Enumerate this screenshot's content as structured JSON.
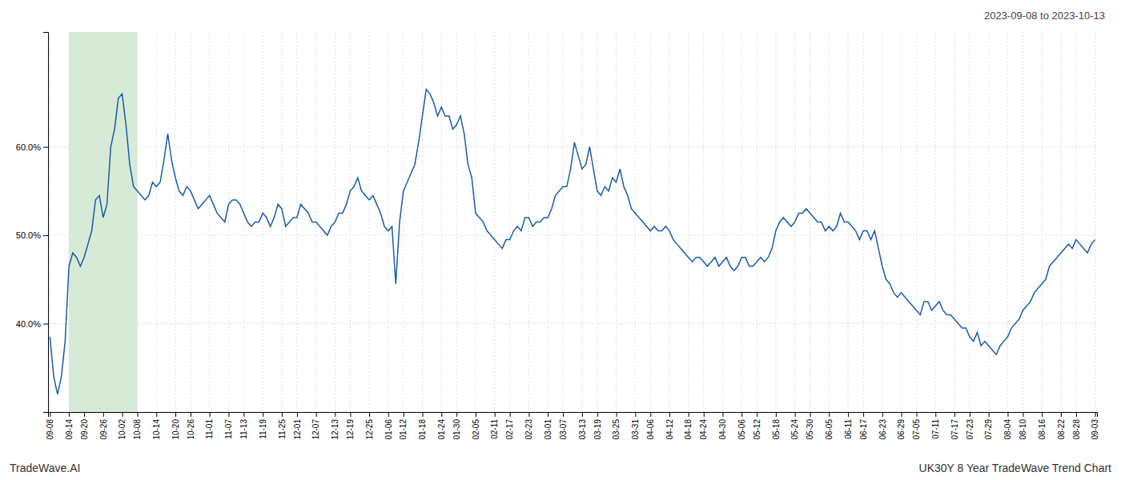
{
  "chart_data": {
    "type": "line",
    "title": "2023-09-08 to 2023-10-13",
    "annotations": [
      "TradeWave.AI",
      "UK30Y 8 Year TradeWave Trend Chart"
    ],
    "color": "#1a5ca8",
    "grid": true,
    "ylim": [
      30.0,
      73.0
    ],
    "yticks": [
      {
        "value": 40.0,
        "label": "40.0%"
      },
      {
        "value": 50.0,
        "label": "50.0%"
      },
      {
        "value": 60.0,
        "label": "60.0%"
      }
    ],
    "shade": {
      "start": "09-14",
      "end": "10-08",
      "color": "#d6ead6"
    },
    "categories": [
      "09-08",
      null,
      null,
      null,
      null,
      "09-14",
      null,
      null,
      null,
      "09-20",
      null,
      null,
      null,
      null,
      "09-26",
      null,
      null,
      null,
      null,
      "10-02",
      null,
      null,
      null,
      "10-08",
      null,
      null,
      null,
      null,
      "10-14",
      null,
      null,
      null,
      null,
      "10-20",
      null,
      null,
      null,
      "10-26",
      null,
      null,
      null,
      null,
      "11-01",
      null,
      null,
      null,
      null,
      "11-07",
      null,
      null,
      null,
      "11-13",
      null,
      null,
      null,
      null,
      "11-19",
      null,
      null,
      null,
      null,
      "11-25",
      null,
      null,
      null,
      "12-01",
      null,
      null,
      null,
      null,
      "12-07",
      null,
      null,
      null,
      null,
      "12-13",
      null,
      null,
      null,
      "12-19",
      null,
      null,
      null,
      null,
      "12-25",
      null,
      null,
      null,
      null,
      "01-06",
      null,
      null,
      null,
      "01-12",
      null,
      null,
      null,
      null,
      "01-18",
      null,
      null,
      null,
      null,
      "01-24",
      null,
      null,
      null,
      "01-30",
      null,
      null,
      null,
      null,
      "02-05",
      null,
      null,
      null,
      null,
      "02-11",
      null,
      null,
      null,
      "02-17",
      null,
      null,
      null,
      null,
      "02-23",
      null,
      null,
      null,
      null,
      "03-01",
      null,
      null,
      null,
      "03-07",
      null,
      null,
      null,
      null,
      "03-13",
      null,
      null,
      null,
      "03-19",
      null,
      null,
      null,
      null,
      "03-25",
      null,
      null,
      null,
      null,
      "03-31",
      null,
      null,
      null,
      "04-06",
      null,
      null,
      null,
      null,
      "04-12",
      null,
      null,
      null,
      null,
      "04-18",
      null,
      null,
      null,
      "04-24",
      null,
      null,
      null,
      null,
      "04-30",
      null,
      null,
      null,
      null,
      "05-06",
      null,
      null,
      null,
      "05-12",
      null,
      null,
      null,
      null,
      "05-18",
      null,
      null,
      null,
      null,
      "05-24",
      null,
      null,
      null,
      "05-30",
      null,
      null,
      null,
      null,
      "06-05",
      null,
      null,
      null,
      null,
      "06-11",
      null,
      null,
      null,
      "06-17",
      null,
      null,
      null,
      null,
      "06-23",
      null,
      null,
      null,
      null,
      "06-29",
      null,
      null,
      null,
      "07-05",
      null,
      null,
      null,
      null,
      "07-11",
      null,
      null,
      null,
      null,
      "07-17",
      null,
      null,
      null,
      "07-23",
      null,
      null,
      null,
      null,
      "07-29",
      null,
      null,
      null,
      null,
      "08-04",
      null,
      null,
      null,
      "08-10",
      null,
      null,
      null,
      null,
      "08-16",
      null,
      null,
      null,
      null,
      "08-22",
      null,
      null,
      null,
      "08-28",
      null,
      null,
      null,
      null,
      "09-03"
    ],
    "values": [
      38.5,
      34.0,
      32.0,
      34.0,
      38.0,
      46.5,
      48.0,
      47.5,
      46.5,
      47.5,
      49.0,
      50.5,
      54.0,
      54.5,
      52.0,
      53.5,
      60.0,
      62.0,
      65.5,
      66.0,
      62.5,
      58.0,
      55.5,
      55.0,
      54.5,
      54.0,
      54.5,
      56.0,
      55.5,
      56.0,
      58.5,
      61.5,
      58.5,
      56.5,
      55.0,
      54.5,
      55.5,
      55.0,
      54.0,
      53.0,
      53.5,
      54.0,
      54.5,
      53.5,
      52.5,
      52.0,
      51.5,
      53.5,
      54.0,
      54.0,
      53.5,
      52.5,
      51.5,
      51.0,
      51.5,
      51.5,
      52.5,
      52.0,
      51.0,
      52.0,
      53.5,
      53.0,
      51.0,
      51.5,
      52.0,
      52.0,
      53.5,
      53.0,
      52.5,
      51.5,
      51.5,
      51.0,
      50.5,
      50.0,
      51.0,
      51.5,
      52.5,
      52.5,
      53.5,
      55.0,
      55.5,
      56.5,
      55.0,
      54.5,
      54.0,
      54.5,
      53.5,
      52.5,
      51.0,
      50.5,
      51.0,
      44.5,
      51.5,
      55.0,
      56.0,
      57.0,
      58.0,
      60.5,
      63.5,
      66.5,
      66.0,
      65.0,
      63.5,
      64.5,
      63.5,
      63.5,
      62.0,
      62.5,
      63.5,
      61.5,
      58.0,
      56.5,
      52.5,
      52.0,
      51.5,
      50.5,
      50.0,
      49.5,
      49.0,
      48.5,
      49.5,
      49.5,
      50.5,
      51.0,
      50.5,
      52.0,
      52.0,
      51.0,
      51.5,
      51.5,
      52.0,
      52.0,
      53.0,
      54.5,
      55.0,
      55.5,
      55.5,
      57.5,
      60.5,
      59.0,
      57.5,
      58.0,
      60.0,
      57.5,
      55.0,
      54.5,
      55.5,
      55.0,
      56.5,
      56.0,
      57.5,
      55.5,
      54.5,
      53.0,
      52.5,
      52.0,
      51.5,
      51.0,
      50.5,
      51.0,
      50.5,
      50.5,
      51.0,
      50.5,
      49.5,
      49.0,
      48.5,
      48.0,
      47.5,
      47.0,
      47.5,
      47.5,
      47.0,
      46.5,
      47.0,
      47.5,
      46.5,
      47.0,
      47.5,
      46.5,
      46.0,
      46.5,
      47.5,
      47.5,
      46.5,
      46.5,
      47.0,
      47.5,
      47.0,
      47.5,
      48.5,
      50.5,
      51.5,
      52.0,
      51.5,
      51.0,
      51.5,
      52.5,
      52.5,
      53.0,
      52.5,
      52.0,
      51.5,
      51.5,
      50.5,
      51.0,
      50.5,
      51.0,
      52.5,
      51.5,
      51.5,
      51.0,
      50.5,
      49.5,
      50.5,
      50.5,
      49.5,
      50.5,
      48.5,
      46.5,
      45.0,
      44.5,
      43.5,
      43.0,
      43.5,
      43.0,
      42.5,
      42.0,
      41.5,
      41.0,
      42.5,
      42.5,
      41.5,
      42.0,
      42.5,
      41.5,
      41.0,
      41.0,
      40.5,
      40.0,
      39.5,
      39.5,
      38.5,
      38.0,
      39.0,
      37.5,
      38.0,
      37.5,
      37.0,
      36.5,
      37.5,
      38.0,
      38.5,
      39.5,
      40.0,
      40.5,
      41.5,
      42.0,
      42.5,
      43.5,
      44.0,
      44.5,
      45.0,
      46.5,
      47.0,
      47.5,
      48.0,
      48.5,
      49.0,
      48.5,
      49.5,
      49.0,
      48.5,
      48.0,
      49.0,
      49.5
    ]
  }
}
